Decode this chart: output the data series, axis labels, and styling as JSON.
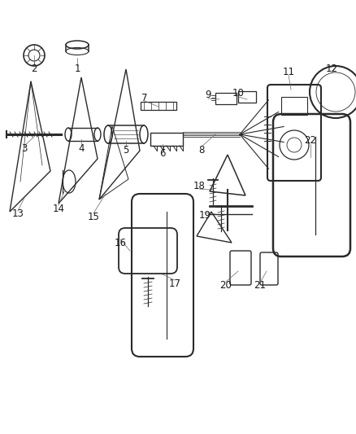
{
  "bg_color": "#ffffff",
  "line_color": "#2a2a2a",
  "label_color": "#1a1a1a",
  "figsize": [
    4.38,
    5.33
  ],
  "dpi": 100,
  "xlim": [
    0,
    438
  ],
  "ylim": [
    0,
    533
  ]
}
